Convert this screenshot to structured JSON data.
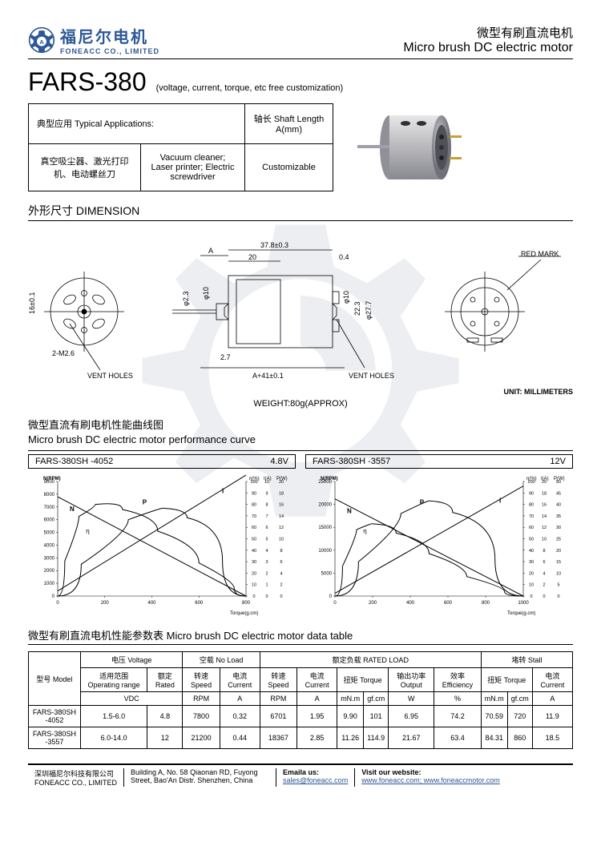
{
  "header": {
    "logo_cn": "福尼尔电机",
    "logo_en": "FONEACC CO., LIMITED",
    "type_cn": "微型有刷直流电机",
    "type_en": "Micro brush DC electric motor"
  },
  "title": {
    "name": "FARS-380",
    "sub": "(voltage, current, torque, etc free customization)"
  },
  "applications": {
    "header_cn_en": "典型应用 Typical Applications:",
    "cn": "真空吸尘器、激光打印机、电动螺丝刀",
    "en": "Vacuum cleaner; Laser printer; Electric screwdriver",
    "shaft_header": "轴长 Shaft Length A(mm)",
    "shaft_value": "Customizable"
  },
  "dimension": {
    "title": "外形尺寸 DIMENSION",
    "labels": {
      "vent_holes": "VENT HOLES",
      "red_mark": "RED MARK",
      "A": "A",
      "d37_8": "37.8±0.3",
      "d20": "20",
      "d0_4": "0.4",
      "d16": "16±0.1",
      "m26": "2-M2.6",
      "phi10": "φ10",
      "phi2_3": "φ2.3",
      "d2_7": "2.7",
      "a41": "A+41±0.1",
      "phi10b": "φ10",
      "d22_3": "22.3",
      "phi27_7": "φ27.7"
    },
    "weight": "WEIGHT:80g(APPROX)",
    "unit": "UNIT: MILLIMETERS"
  },
  "performance": {
    "title_cn": "微型直流有刷电机性能曲线图",
    "title_en": "Micro brush DC electric motor performance curve",
    "chart1": {
      "model": "FARS-380SH -4052",
      "voltage": "4.8V",
      "x_label": "Torque(g.cm)",
      "x_ticks": [
        0,
        200,
        400,
        600,
        800
      ],
      "y_left_label": "N(RPM)",
      "y_left_ticks": [
        0,
        1000,
        2000,
        3000,
        4000,
        5000,
        6000,
        7000,
        8000,
        9000
      ],
      "y_right_labels": [
        "η(%)",
        "I(A)",
        "P(W)"
      ],
      "y_right1_ticks": [
        0,
        10,
        20,
        30,
        40,
        50,
        60,
        70,
        80,
        90,
        100
      ],
      "y_right2_ticks": [
        0,
        1,
        2,
        3,
        4,
        5,
        6,
        7,
        8,
        9,
        10
      ],
      "y_right3_ticks": [
        0,
        2,
        4,
        6,
        8,
        10,
        12,
        14,
        16,
        18,
        20
      ],
      "curves": {
        "N": [
          [
            0,
            7800
          ],
          [
            800,
            0
          ]
        ],
        "I": [
          [
            0,
            400
          ],
          [
            800,
            9500
          ]
        ],
        "eta": [
          [
            0,
            0
          ],
          [
            60,
            5500
          ],
          [
            120,
            7000
          ],
          [
            200,
            7400
          ],
          [
            350,
            6200
          ],
          [
            500,
            4000
          ],
          [
            700,
            1200
          ],
          [
            800,
            0
          ]
        ],
        "P": [
          [
            0,
            0
          ],
          [
            200,
            5000
          ],
          [
            400,
            7000
          ],
          [
            500,
            6800
          ],
          [
            600,
            5500
          ],
          [
            800,
            0
          ]
        ]
      },
      "colors": {
        "line": "#000000",
        "axis": "#000000"
      }
    },
    "chart2": {
      "model": "FARS-380SH -3557",
      "voltage": "12V",
      "x_label": "Torque(g.cm)",
      "x_ticks": [
        0,
        200,
        400,
        600,
        800,
        1000
      ],
      "y_left_label": "N(RPM)",
      "y_left_ticks": [
        0,
        5000,
        10000,
        15000,
        20000,
        25000
      ],
      "y_right_labels": [
        "η(%)",
        "I(A)",
        "P(W)"
      ],
      "y_right1_ticks": [
        0,
        10,
        20,
        30,
        40,
        50,
        60,
        70,
        80,
        90,
        100
      ],
      "y_right2_ticks": [
        0,
        2,
        4,
        6,
        8,
        10,
        12,
        14,
        16,
        18,
        20
      ],
      "y_right3_ticks": [
        0,
        5,
        10,
        15,
        20,
        25,
        30,
        35,
        40,
        45,
        50
      ],
      "curves": {
        "N": [
          [
            0,
            21200
          ],
          [
            1000,
            0
          ]
        ],
        "I": [
          [
            0,
            600
          ],
          [
            1000,
            24000
          ]
        ],
        "eta": [
          [
            0,
            0
          ],
          [
            80,
            13000
          ],
          [
            150,
            16000
          ],
          [
            250,
            15500
          ],
          [
            400,
            12000
          ],
          [
            600,
            6500
          ],
          [
            800,
            2000
          ],
          [
            1000,
            0
          ]
        ],
        "P": [
          [
            0,
            0
          ],
          [
            250,
            15000
          ],
          [
            450,
            21000
          ],
          [
            550,
            20500
          ],
          [
            700,
            16000
          ],
          [
            1000,
            0
          ]
        ]
      },
      "colors": {
        "line": "#000000",
        "axis": "#000000"
      }
    }
  },
  "datatable": {
    "title": "微型有刷直流电机性能参数表 Micro brush DC electric motor data table",
    "headers": {
      "model": "型号\nModel",
      "voltage": "电压 Voltage",
      "noload": "空载 No Load",
      "rated": "额定负载 RATED LOAD",
      "stall": "堵转 Stall",
      "op_range": "适用范围\nOperating range",
      "rated_v": "额定\nRated",
      "speed": "转速\nSpeed",
      "current": "电流\nCurrent",
      "torque": "扭矩\nTorque",
      "output": "输出功率\nOutput",
      "eff": "效率\nEfficiency",
      "vdc": "VDC",
      "rpm": "RPM",
      "a": "A",
      "mnm": "mN.m",
      "gfcm": "gf.cm",
      "w": "W",
      "pct": "%"
    },
    "rows": [
      {
        "model": "FARS-380SH -4052",
        "range": "1.5-6.0",
        "rated": "4.8",
        "nl_rpm": "7800",
        "nl_a": "0.32",
        "rl_rpm": "6701",
        "rl_a": "1.95",
        "mnm": "9.90",
        "gfcm": "101",
        "w": "6.95",
        "eff": "74.2",
        "st_mnm": "70.59",
        "st_gfcm": "720",
        "st_a": "11.9"
      },
      {
        "model": "FARS-380SH -3557",
        "range": "6.0-14.0",
        "rated": "12",
        "nl_rpm": "21200",
        "nl_a": "0.44",
        "rl_rpm": "18367",
        "rl_a": "2.85",
        "mnm": "11.26",
        "gfcm": "114.9",
        "w": "21.67",
        "eff": "63.4",
        "st_mnm": "84.31",
        "st_gfcm": "860",
        "st_a": "18.5"
      }
    ]
  },
  "footer": {
    "company_cn": "深圳福尼尔科技有限公司",
    "company_en": "FONEACC CO., LIMITED",
    "address": "Building A, No. 58 Qiaonan RD, Fuyong Street, Bao'An Distr. Shenzhen, China",
    "email_label": "Emaila us:",
    "email": "sales@foneacc.com",
    "web_label": "Visit our website:",
    "web": "www.foneacc.com; www.foneaccmotor.com"
  },
  "colors": {
    "brand": "#2e5896",
    "line": "#000000",
    "watermark": "#6b7a8f"
  }
}
